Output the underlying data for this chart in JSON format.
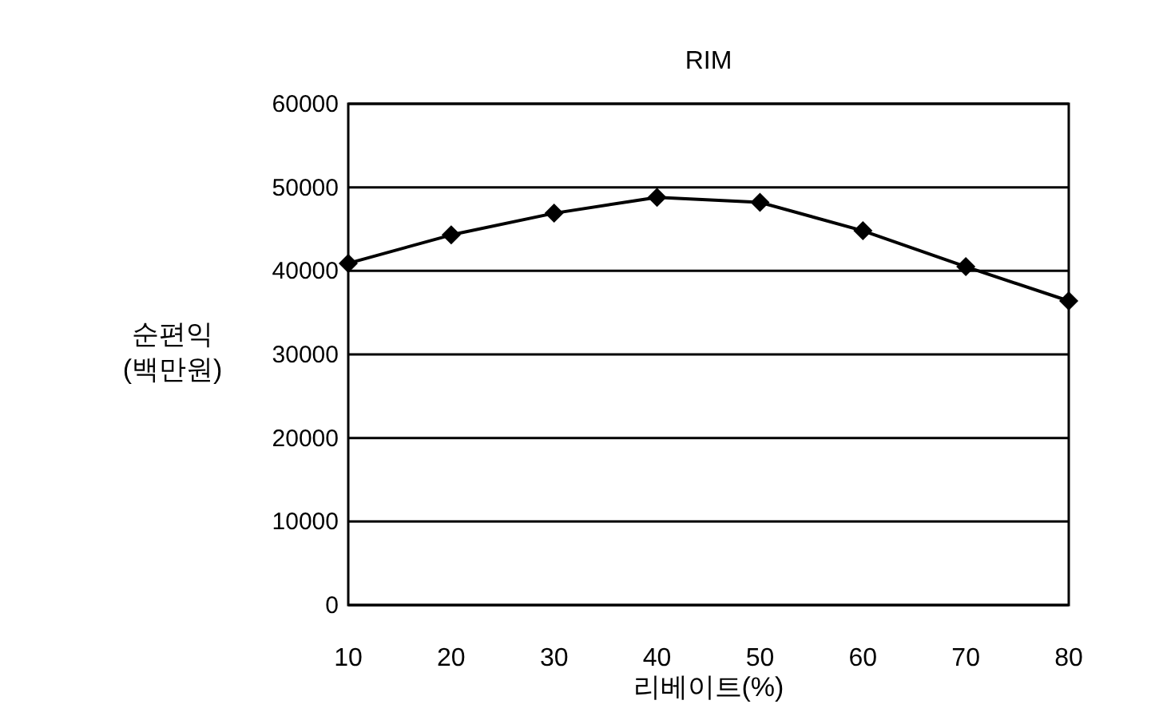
{
  "chart_data": {
    "type": "line",
    "title": "RIM",
    "xlabel": "리베이트(%)",
    "ylabel": "순편익\n(백만원)",
    "x": [
      10,
      20,
      30,
      40,
      50,
      60,
      70,
      80
    ],
    "series": [
      {
        "color": "#000000",
        "values": [
          40900,
          44300,
          46900,
          48800,
          48200,
          44800,
          40500,
          36400
        ]
      }
    ],
    "xlim": [
      10,
      80
    ],
    "xticks": [
      10,
      20,
      30,
      40,
      50,
      60,
      70,
      80
    ],
    "ylim": [
      0,
      60000
    ],
    "yticks": [
      0,
      10000,
      20000,
      30000,
      40000,
      50000,
      60000
    ],
    "grid": "y",
    "marker": "diamond",
    "line_style": "solid"
  }
}
